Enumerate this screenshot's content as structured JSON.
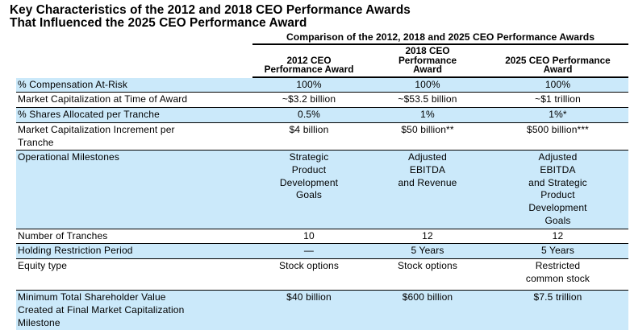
{
  "page": {
    "title": "Key Characteristics of the 2012 and 2018 CEO Performance Awards\nThat Influenced the 2025 CEO Performance Award"
  },
  "table": {
    "caption": "Comparison of the 2012, 2018 and 2025 CEO Performance Awards",
    "highlight_color": "#cbe9fa",
    "columns": [
      "2012 CEO\nPerformance Award",
      "2018 CEO\nPerformance\nAward",
      "2025 CEO Performance\nAward"
    ],
    "rows": [
      {
        "label": "% Compensation At-Risk",
        "values": [
          "100%",
          "100%",
          "100%"
        ],
        "highlight": true
      },
      {
        "label": "Market Capitalization at Time of Award",
        "values": [
          "~$3.2 billion",
          "~$53.5 billion",
          "~$1 trillion"
        ],
        "highlight": false
      },
      {
        "label": "% Shares Allocated per Tranche",
        "values": [
          "0.5%",
          "1%",
          "1%*"
        ],
        "highlight": true
      },
      {
        "label": "Market Capitalization Increment per\nTranche",
        "values": [
          "$4 billion",
          "$50 billion**",
          "$500 billion***"
        ],
        "highlight": false
      },
      {
        "label": "Operational Milestones",
        "values": [
          "Strategic\nProduct\nDevelopment\nGoals",
          "Adjusted\nEBITDA\nand Revenue",
          "Adjusted\nEBITDA\nand Strategic\nProduct\nDevelopment\nGoals"
        ],
        "highlight": true
      },
      {
        "label": "Number of Tranches",
        "values": [
          "10",
          "12",
          "12"
        ],
        "highlight": false
      },
      {
        "label": "Holding Restriction Period",
        "values": [
          "—",
          "5 Years",
          "5 Years"
        ],
        "highlight": true
      },
      {
        "label": "Equity type",
        "values": [
          "Stock options",
          "Stock options",
          "Restricted\ncommon stock"
        ],
        "highlight": false
      },
      {
        "label": "Minimum Total Shareholder Value\nCreated at Final Market Capitalization\nMilestone",
        "values": [
          "$40 billion",
          "$600 billion",
          "$7.5 trillion"
        ],
        "highlight": true
      }
    ]
  }
}
